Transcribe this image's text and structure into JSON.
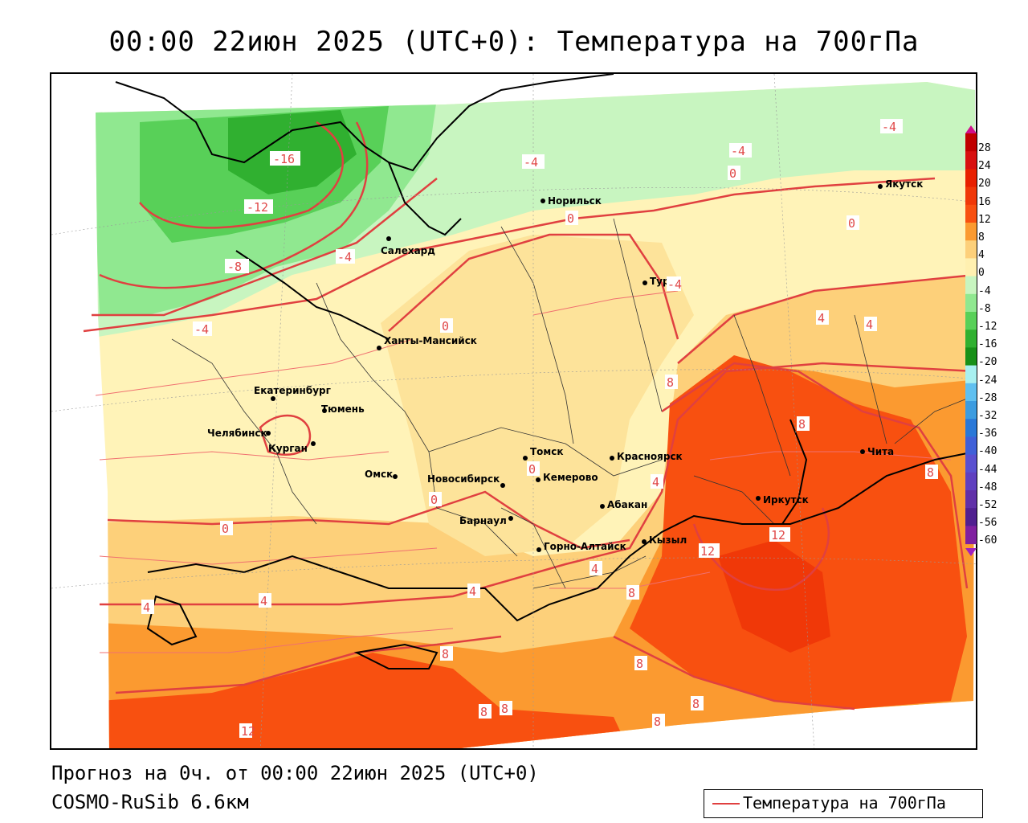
{
  "header": {
    "title": "00:00 22июн 2025 (UTC+0): Температура на 700гПа"
  },
  "footer": {
    "forecast_line": "Прогноз на 0ч. от 00:00 22июн 2025 (UTC+0)",
    "model_line": "COSMO-RuSib 6.6км"
  },
  "legend": {
    "label": "Температура на 700гПа",
    "line_color": "#e04040"
  },
  "colorbar": {
    "ticks": [
      "28",
      "24",
      "20",
      "16",
      "12",
      "8",
      "4",
      "0",
      "-4",
      "-8",
      "-12",
      "-16",
      "-20",
      "-24",
      "-28",
      "-32",
      "-36",
      "-40",
      "-44",
      "-48",
      "-52",
      "-56",
      "-60"
    ],
    "colors": [
      "#c00000",
      "#d81010",
      "#e82000",
      "#f03808",
      "#f85010",
      "#fb9a30",
      "#fdd07a",
      "#fff0b0",
      "#c8f5c0",
      "#90e890",
      "#58d058",
      "#30b030",
      "#189018",
      "#a8f0f0",
      "#60c0f0",
      "#3c9ce0",
      "#2a78d8",
      "#4060d8",
      "#5a50d0",
      "#6040c0",
      "#6030a8",
      "#502090",
      "#8020a0"
    ]
  },
  "cities": [
    {
      "name": "Норильск"
    },
    {
      "name": "Якутск"
    },
    {
      "name": "Салехард"
    },
    {
      "name": "Тура"
    },
    {
      "name": "Ханты-Мансийск"
    },
    {
      "name": "Екатеринбург"
    },
    {
      "name": "Тюмень"
    },
    {
      "name": "Челябинск"
    },
    {
      "name": "Курган"
    },
    {
      "name": "Омск"
    },
    {
      "name": "Томск"
    },
    {
      "name": "Новосибирск"
    },
    {
      "name": "Кемерово"
    },
    {
      "name": "Красноярск"
    },
    {
      "name": "Барнаул"
    },
    {
      "name": "Абакан"
    },
    {
      "name": "Иркутск"
    },
    {
      "name": "Чита"
    },
    {
      "name": "Горно-Алтайск"
    },
    {
      "name": "Кызыл"
    }
  ],
  "contour_labels": [
    "-16",
    "-12",
    "-8",
    "-4",
    "-4",
    "-4",
    "-4",
    "-4",
    "-4",
    "0",
    "0",
    "0",
    "0",
    "0",
    "0",
    "0",
    "4",
    "4",
    "4",
    "4",
    "4",
    "4",
    "4",
    "8",
    "8",
    "8",
    "8",
    "8",
    "8",
    "8",
    "8",
    "8",
    "8",
    "12",
    "12",
    "12"
  ]
}
